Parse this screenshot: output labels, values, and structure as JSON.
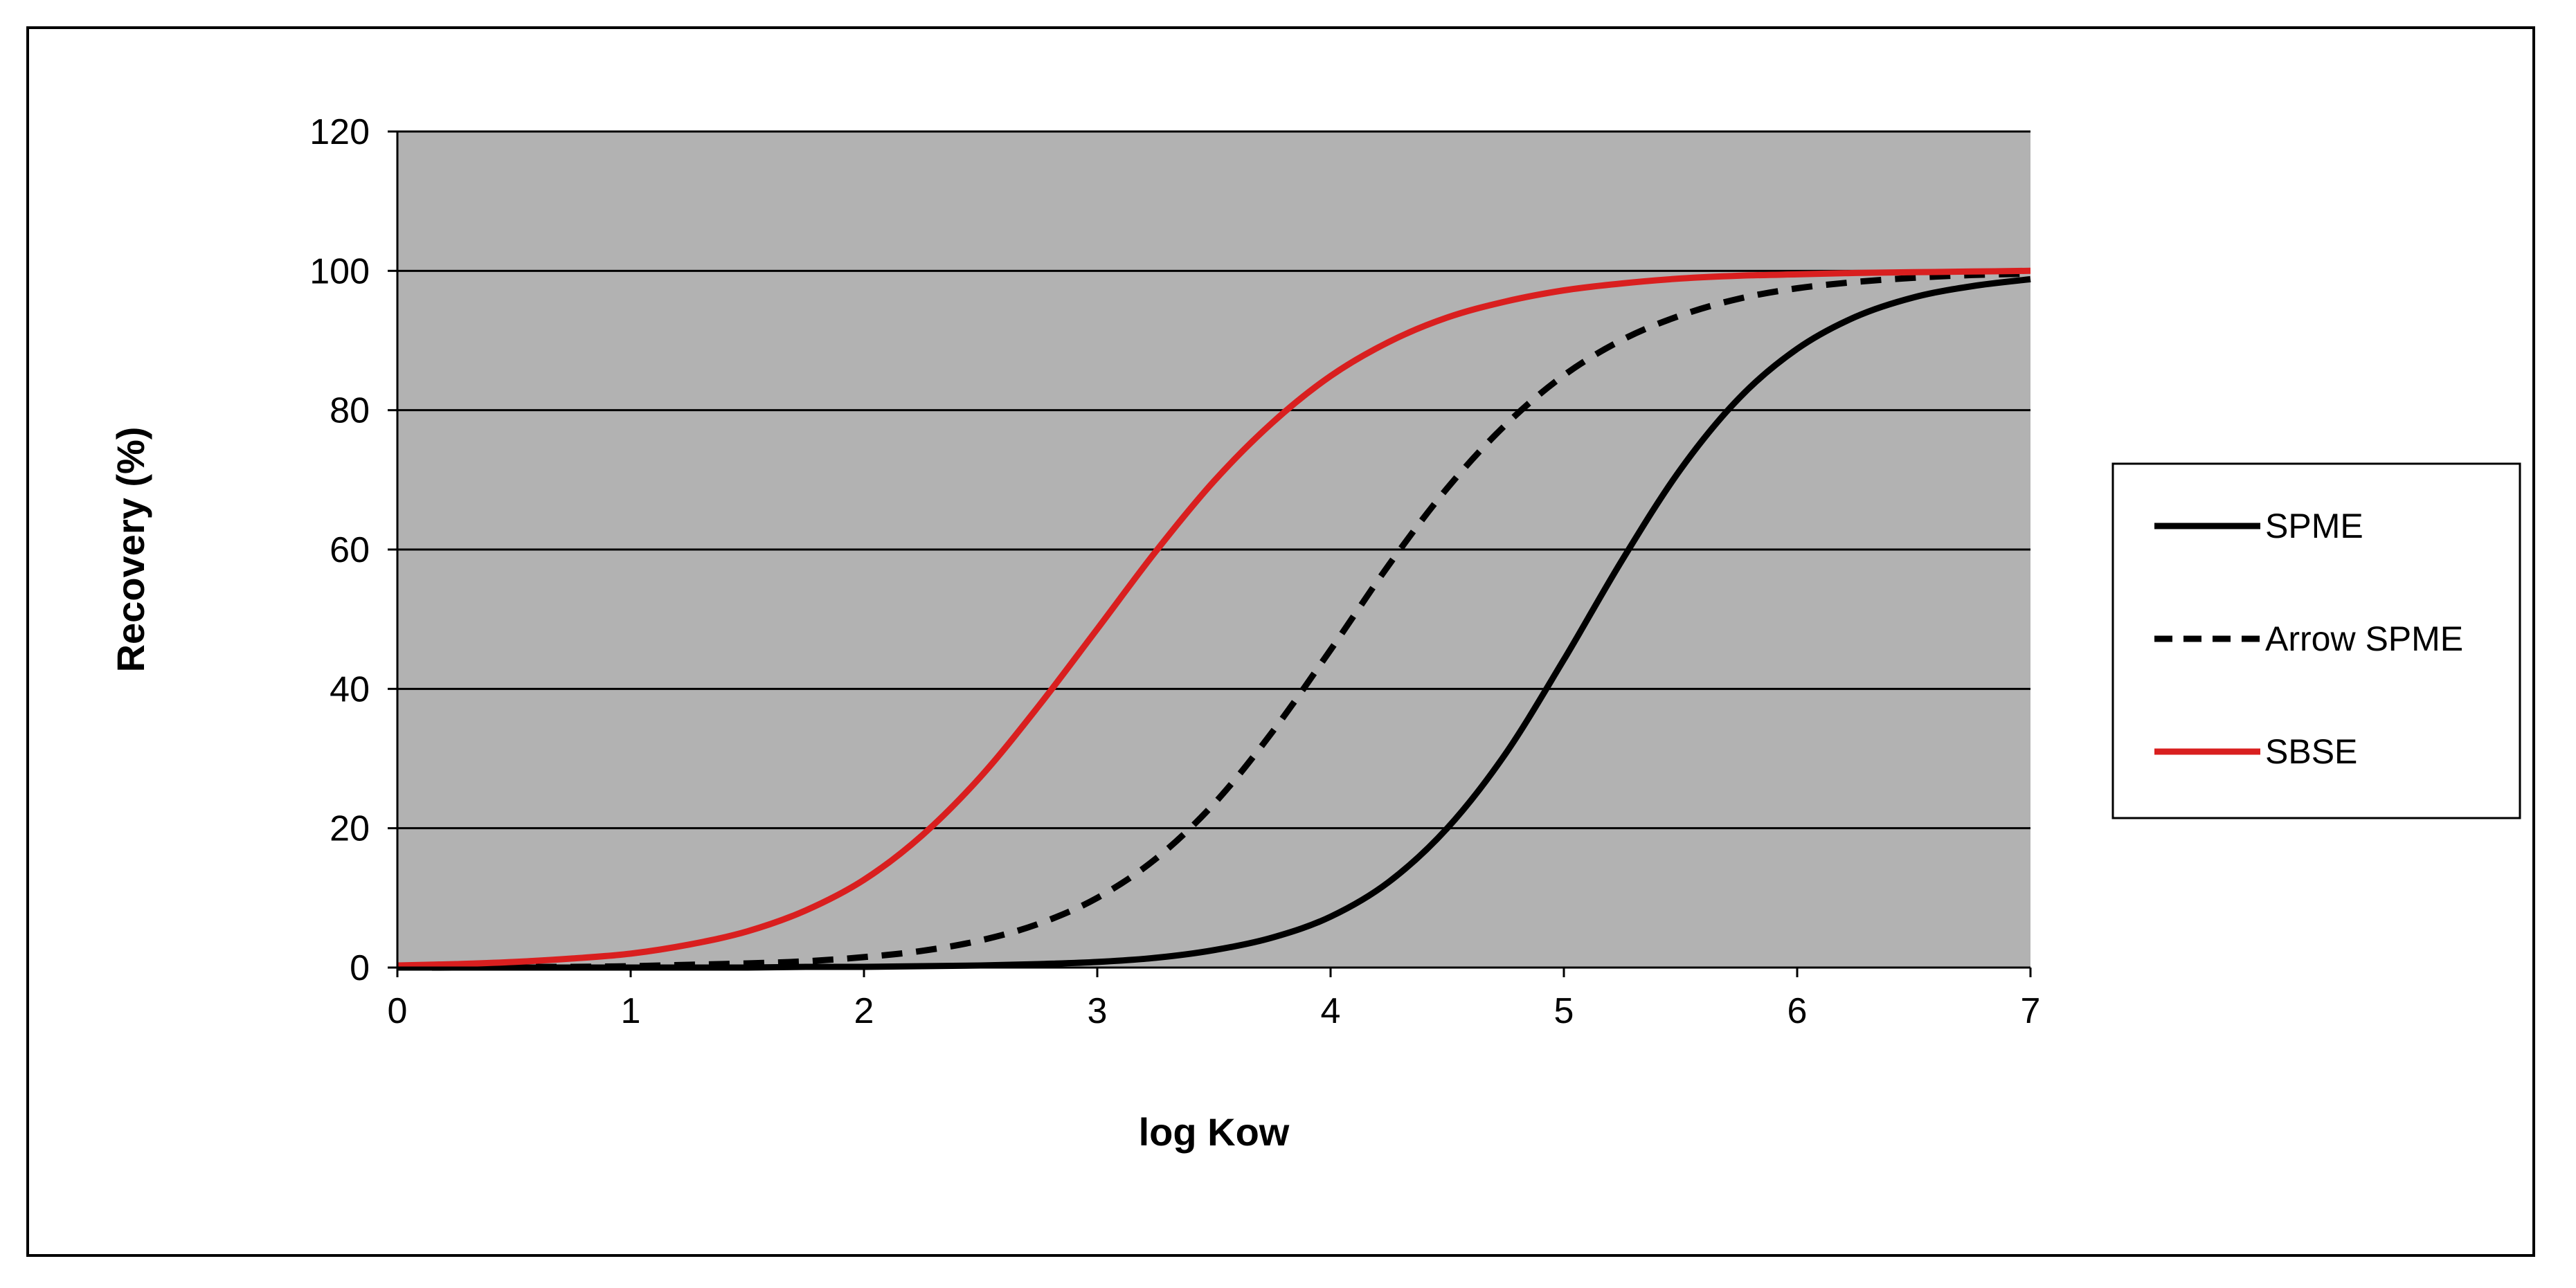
{
  "chart_data": {
    "type": "line",
    "title": "",
    "xlabel": "log Kow",
    "ylabel": "Recovery (%)",
    "xlim": [
      0,
      7
    ],
    "ylim": [
      0,
      120
    ],
    "x_ticks": [
      0,
      1,
      2,
      3,
      4,
      5,
      6,
      7
    ],
    "y_ticks": [
      0,
      20,
      40,
      60,
      80,
      100,
      120
    ],
    "grid": "horizontal",
    "plot_background": "#b2b2b2",
    "legend_position": "right",
    "x": [
      0,
      0.25,
      0.5,
      0.75,
      1,
      1.25,
      1.5,
      1.75,
      2,
      2.25,
      2.5,
      2.75,
      3,
      3.25,
      3.5,
      3.75,
      4,
      4.25,
      4.5,
      4.75,
      5,
      5.25,
      5.5,
      5.75,
      6,
      6.25,
      6.5,
      6.75,
      7
    ],
    "series": [
      {
        "name": "SPME",
        "color": "#000000",
        "style": "solid",
        "values": [
          0,
          0,
          0,
          0,
          0,
          0,
          0,
          0.1,
          0.1,
          0.2,
          0.3,
          0.5,
          0.8,
          1.4,
          2.5,
          4.3,
          7.3,
          12.3,
          20,
          30.7,
          44.2,
          58.5,
          71.5,
          81.7,
          88.8,
          93.4,
          96.2,
          97.8,
          98.8
        ]
      },
      {
        "name": "Arrow SPME",
        "color": "#000000",
        "style": "dashed",
        "values": [
          0,
          0,
          0.1,
          0.1,
          0.2,
          0.4,
          0.6,
          0.9,
          1.5,
          2.4,
          3.9,
          6.3,
          10,
          15.6,
          23.5,
          33.8,
          45.6,
          57.8,
          68.8,
          77.9,
          85,
          90.1,
          93.6,
          96,
          97.5,
          98.4,
          99,
          99.4,
          99.6
        ]
      },
      {
        "name": "SBSE",
        "color": "#d91f1f",
        "style": "solid",
        "values": [
          0.3,
          0.5,
          0.8,
          1.3,
          2,
          3.3,
          5.2,
          8.2,
          12.6,
          19,
          27.4,
          37.6,
          48.6,
          59.7,
          69.8,
          78.2,
          84.9,
          89.8,
          93.3,
          95.6,
          97.2,
          98.2,
          98.9,
          99.3,
          99.5,
          99.7,
          99.8,
          99.9,
          100
        ]
      }
    ]
  }
}
